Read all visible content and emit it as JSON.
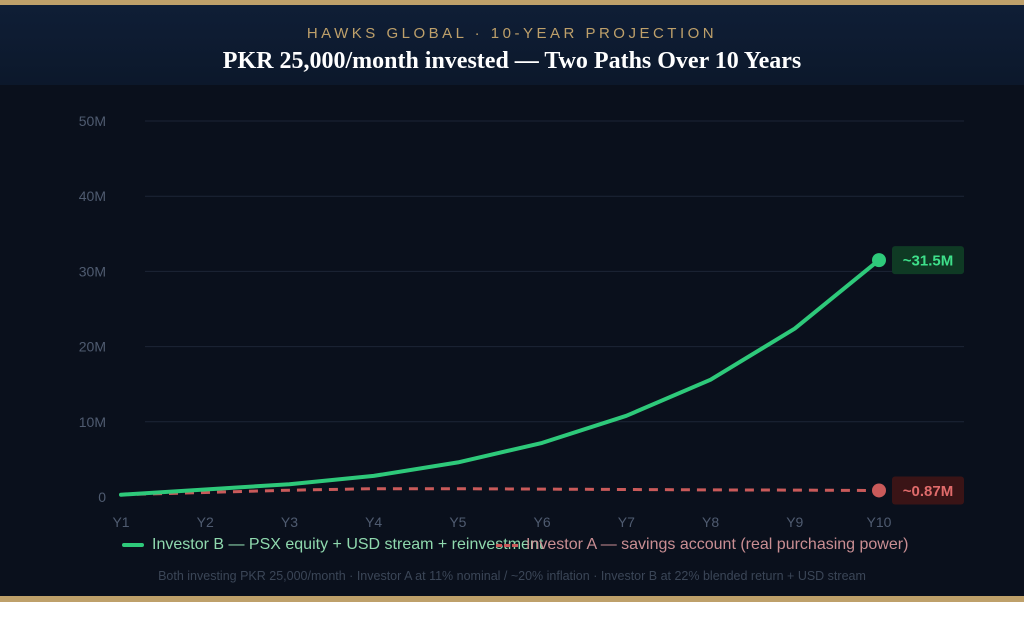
{
  "header": {
    "kicker": "HAWKS GLOBAL · 10-YEAR PROJECTION",
    "title": "PKR 25,000/month invested — Two Paths Over 10 Years"
  },
  "colors": {
    "background": "#0a101c",
    "gold": "#bea06a",
    "investor_b": "#2ec97a",
    "investor_a": "#c95a5a"
  },
  "chart_data": {
    "type": "line",
    "x": [
      "Y1",
      "Y2",
      "Y3",
      "Y4",
      "Y5",
      "Y6",
      "Y7",
      "Y8",
      "Y9",
      "Y10"
    ],
    "y_ticks": [
      "0",
      "10M",
      "20M",
      "30M",
      "40M",
      "50M"
    ],
    "ylim": [
      0,
      50000000
    ],
    "grid": true,
    "legend_position": "bottom",
    "series": [
      {
        "name": "Investor B — PSX equity + USD stream + reinvestment",
        "values": [
          300000,
          1000000,
          1700000,
          2800000,
          4600000,
          7200000,
          10800000,
          15600000,
          22400000,
          31500000
        ],
        "style": "solid",
        "end_label": "~31.5M"
      },
      {
        "name": "Investor A — savings account (real purchasing power)",
        "values": [
          300000,
          600000,
          900000,
          1100000,
          1100000,
          1050000,
          1000000,
          950000,
          920000,
          870000
        ],
        "style": "dashed",
        "end_label": "~0.87M"
      }
    ]
  },
  "footnote": "Both investing PKR 25,000/month · Investor A at 11% nominal / ~20% inflation · Investor B at 22% blended return + USD stream"
}
